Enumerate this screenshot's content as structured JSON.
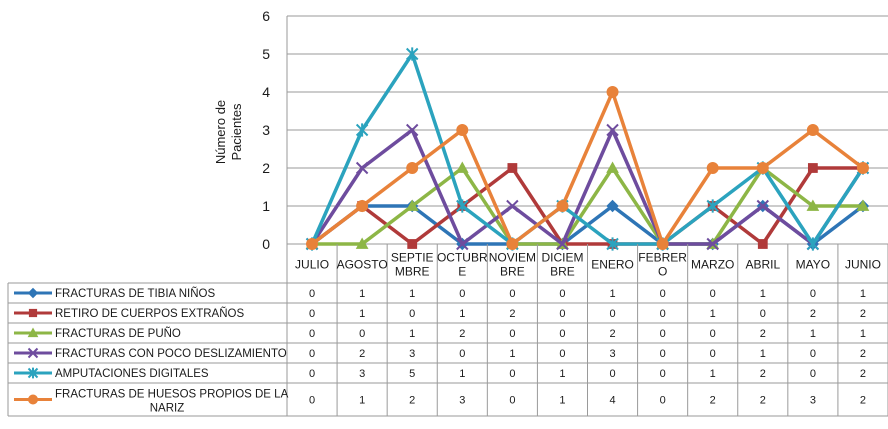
{
  "chart_data": {
    "type": "line",
    "title": "",
    "xlabel": "",
    "ylabel": "Número de Pacientes",
    "ylim": [
      0,
      6
    ],
    "yticks": [
      0,
      1,
      2,
      3,
      4,
      5,
      6
    ],
    "grid": true,
    "legend": "data-table-left",
    "categories": [
      [
        "JULIO"
      ],
      [
        "AGOSTO"
      ],
      [
        "SEPTIE",
        "MBRE"
      ],
      [
        "OCTUBR",
        "E"
      ],
      [
        "NOVIEM",
        "BRE"
      ],
      [
        "DICIEM",
        "BRE"
      ],
      [
        "ENERO"
      ],
      [
        "FEBRER",
        "O"
      ],
      [
        "MARZO"
      ],
      [
        "ABRIL"
      ],
      [
        "MAYO"
      ],
      [
        "JUNIO"
      ]
    ],
    "series": [
      {
        "name": [
          "FRACTURAS DE TIBIA NIÑOS"
        ],
        "color": "#2E75B6",
        "marker": "diamond",
        "values": [
          0,
          1,
          1,
          0,
          0,
          0,
          1,
          0,
          0,
          1,
          0,
          1
        ]
      },
      {
        "name": [
          "RETIRO DE CUERPOS EXTRAÑOS"
        ],
        "color": "#B03A3A",
        "marker": "square",
        "values": [
          0,
          1,
          0,
          1,
          2,
          0,
          0,
          0,
          1,
          0,
          2,
          2
        ]
      },
      {
        "name": [
          "FRACTURAS DE PUÑO"
        ],
        "color": "#8DB646",
        "marker": "triangle",
        "values": [
          0,
          0,
          1,
          2,
          0,
          0,
          2,
          0,
          0,
          2,
          1,
          1
        ]
      },
      {
        "name": [
          "FRACTURAS CON POCO DESLIZAMIENTO"
        ],
        "color": "#6E4C9E",
        "marker": "x",
        "values": [
          0,
          2,
          3,
          0,
          1,
          0,
          3,
          0,
          0,
          1,
          0,
          2
        ]
      },
      {
        "name": [
          "AMPUTACIONES DIGITALES"
        ],
        "color": "#2BA3BE",
        "marker": "star",
        "values": [
          0,
          3,
          5,
          1,
          0,
          1,
          0,
          0,
          1,
          2,
          0,
          2
        ]
      },
      {
        "name": [
          "FRACTURAS DE HUESOS PROPIOS DE LA",
          "NARIZ"
        ],
        "color": "#E8823A",
        "marker": "circle",
        "values": [
          0,
          1,
          2,
          3,
          0,
          1,
          4,
          0,
          2,
          2,
          3,
          2
        ]
      }
    ]
  }
}
